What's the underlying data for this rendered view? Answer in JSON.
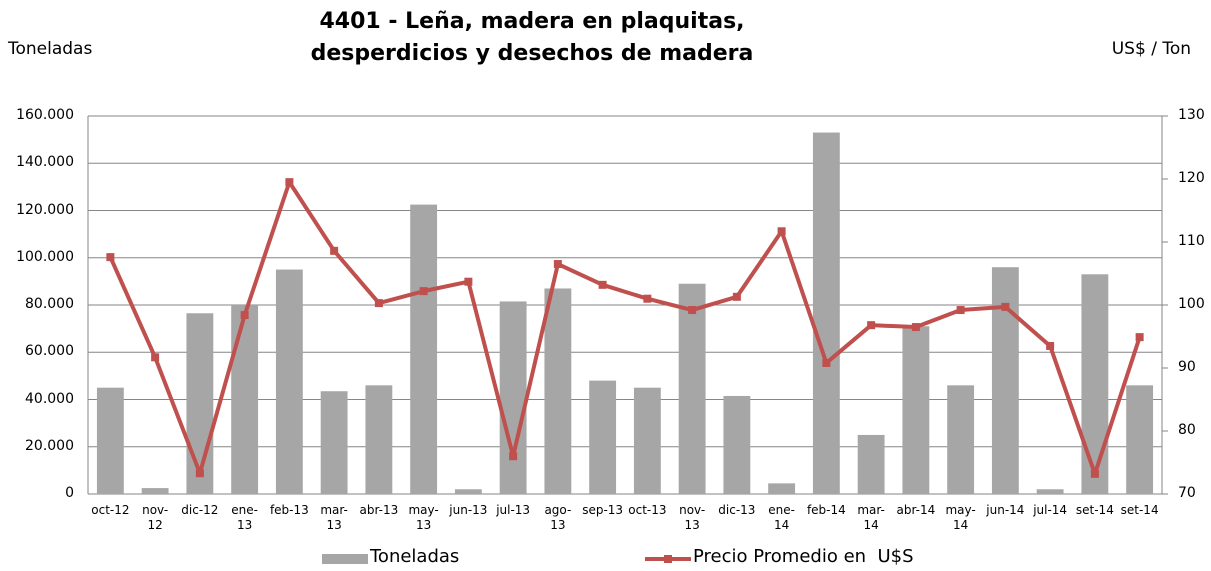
{
  "chart_data": {
    "type": "bar_line",
    "title": "4401 - Leña, madera en plaquitas,\ndesperdicios y desechos de madera",
    "y_label": "Toneladas",
    "y2_label": "US$ / Ton",
    "categories": [
      "oct-12",
      "nov-\n12",
      "dic-12",
      "ene-\n13",
      "feb-13",
      "mar-\n13",
      "abr-13",
      "may-\n13",
      "jun-13",
      "jul-13",
      "ago-\n13",
      "sep-13",
      "oct-13",
      "nov-\n13",
      "dic-13",
      "ene-\n14",
      "feb-14",
      "mar-\n14",
      "abr-14",
      "may-\n14",
      "jun-14",
      "jul-14",
      "set-14",
      "set-14"
    ],
    "series": [
      {
        "name": "Toneladas",
        "type": "bar",
        "color": "#a6a6a6",
        "values": [
          45000,
          2500,
          76500,
          80000,
          95000,
          43500,
          46000,
          122500,
          2000,
          81500,
          87000,
          48000,
          45000,
          89000,
          41500,
          4500,
          153000,
          25000,
          71000,
          46000,
          96000,
          2000,
          93000,
          46000
        ]
      },
      {
        "name": "Precio Promedio en  U$S",
        "type": "line",
        "axis": "y2",
        "color": "#c0504d",
        "values": [
          107.6,
          91.7,
          73.3,
          98.4,
          119.5,
          108.6,
          100.3,
          102.2,
          103.7,
          76,
          106.5,
          103.2,
          101,
          99.2,
          101.3,
          111.7,
          90.8,
          96.8,
          96.5,
          99.2,
          99.7,
          93.5,
          73.2,
          94.9
        ]
      }
    ],
    "ylim": [
      0,
      160000
    ],
    "yticks": [
      0,
      {
        "value": 20000,
        "label": "20.000"
      },
      {
        "value": 40000,
        "label": "40.000"
      },
      {
        "value": 60000,
        "label": "60.000"
      },
      {
        "value": 80000,
        "label": "80.000"
      },
      {
        "value": 100000,
        "label": "100.000"
      },
      {
        "value": 120000,
        "label": "120.000"
      },
      {
        "value": 140000,
        "label": "140.000"
      },
      {
        "value": 160000,
        "label": "160.000"
      }
    ],
    "y2lim": [
      70,
      130
    ],
    "y2ticks": [
      70,
      80,
      90,
      100,
      110,
      120,
      130
    ],
    "grid": true,
    "legend": "bottom"
  }
}
